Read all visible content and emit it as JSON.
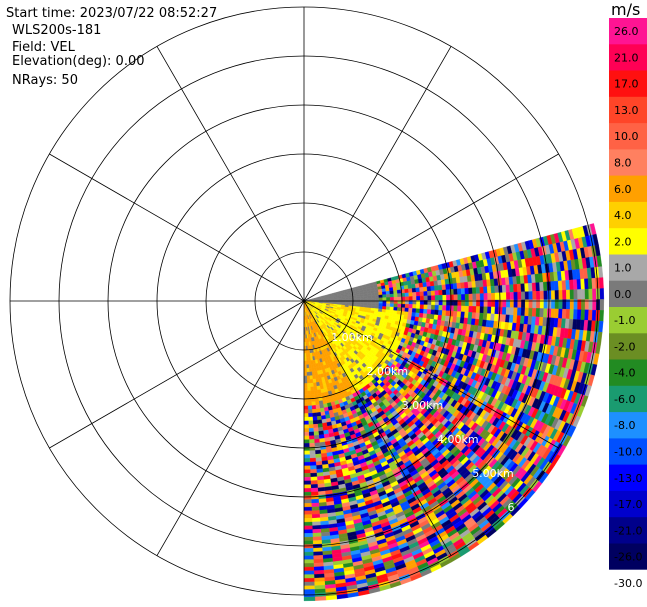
{
  "header": {
    "start_time": "Start time: 2023/07/22 08:52:27",
    "instrument": "WLS200s-181",
    "field": "Field: VEL",
    "elevation": "Elevation(deg): 0.00",
    "nrays": "NRays: 50"
  },
  "chart_data": {
    "type": "heatmap",
    "projection": "polar-ppi",
    "rings_km": [
      1,
      2,
      3,
      4,
      5,
      6
    ],
    "ring_labels": [
      "1.00km",
      "2.00km",
      "3.00km",
      "4.00km",
      "5.00km",
      "6"
    ],
    "spokes_deg": [
      0,
      30,
      60,
      90,
      120,
      150,
      180,
      210,
      240,
      270,
      300,
      330
    ],
    "sector_azimuth_deg": [
      75,
      180
    ],
    "max_range_km": 6,
    "colorbar": {
      "unit": "m/s",
      "tick_labels": [
        "26.0",
        "21.0",
        "17.0",
        "13.0",
        "10.0",
        "8.0",
        "6.0",
        "4.0",
        "2.0",
        "1.0",
        "0.0",
        "-1.0",
        "-2.0",
        "-4.0",
        "-6.0",
        "-8.0",
        "-10.0",
        "-13.0",
        "-17.0",
        "-21.0",
        "-26.0",
        "-30.0"
      ],
      "colors": [
        "#ff1493",
        "#ff0055",
        "#ff1010",
        "#ff4528",
        "#ff6245",
        "#ff8060",
        "#ffa000",
        "#ffd000",
        "#ffff00",
        "#a8a8a8",
        "#7a7a7a",
        "#9acd32",
        "#6b8e23",
        "#228b22",
        "#1a9b70",
        "#1e90ff",
        "#0050ff",
        "#0000ff",
        "#0000cd",
        "#00008b",
        "#000060",
        "#ffffff"
      ]
    }
  }
}
